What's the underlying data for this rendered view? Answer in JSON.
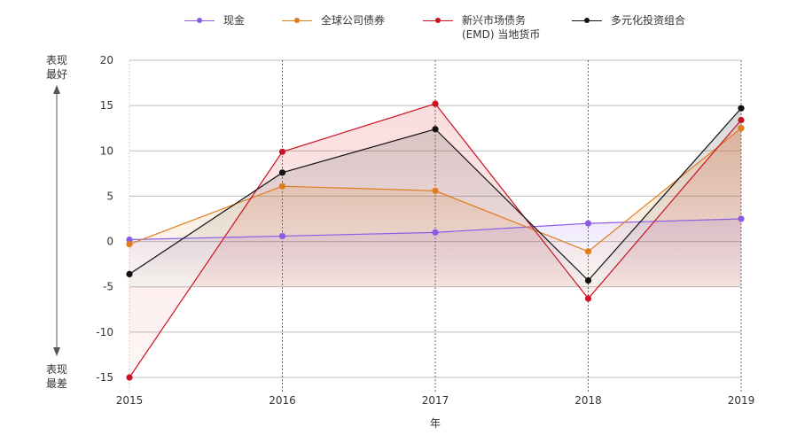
{
  "legend": [
    {
      "label": "现金",
      "color": "#8a5ce6"
    },
    {
      "label": "全球公司债券",
      "color": "#e07b1a"
    },
    {
      "label": "新兴市场债务\n(EMD) 当地货币",
      "color": "#cc1122"
    },
    {
      "label": "多元化投资组合",
      "color": "#111111"
    }
  ],
  "side_labels": {
    "top": "表现\n最好",
    "bottom": "表现\n最差"
  },
  "chart_data": {
    "type": "line",
    "title": "",
    "xlabel": "年",
    "ylabel": "",
    "x": [
      "2015",
      "2016",
      "2017",
      "2018",
      "2019"
    ],
    "ylim": [
      -15,
      20
    ],
    "yticks": [
      "20",
      "15",
      "10",
      "5",
      "0",
      "-5",
      "-10",
      "-15"
    ],
    "series": [
      {
        "name": "现金",
        "color": "#8a5ce6",
        "values": [
          0.2,
          0.6,
          1.0,
          2.0,
          2.5
        ]
      },
      {
        "name": "全球公司债券",
        "color": "#e07b1a",
        "values": [
          -0.3,
          6.1,
          5.6,
          -1.1,
          12.5
        ]
      },
      {
        "name": "新兴市场债务 (EMD) 当地货币",
        "color": "#cc1122",
        "values": [
          -15.0,
          9.9,
          15.2,
          -6.3,
          13.4
        ]
      },
      {
        "name": "多元化投资组合",
        "color": "#111111",
        "values": [
          -3.6,
          7.6,
          12.4,
          -4.3,
          14.7
        ]
      }
    ]
  }
}
